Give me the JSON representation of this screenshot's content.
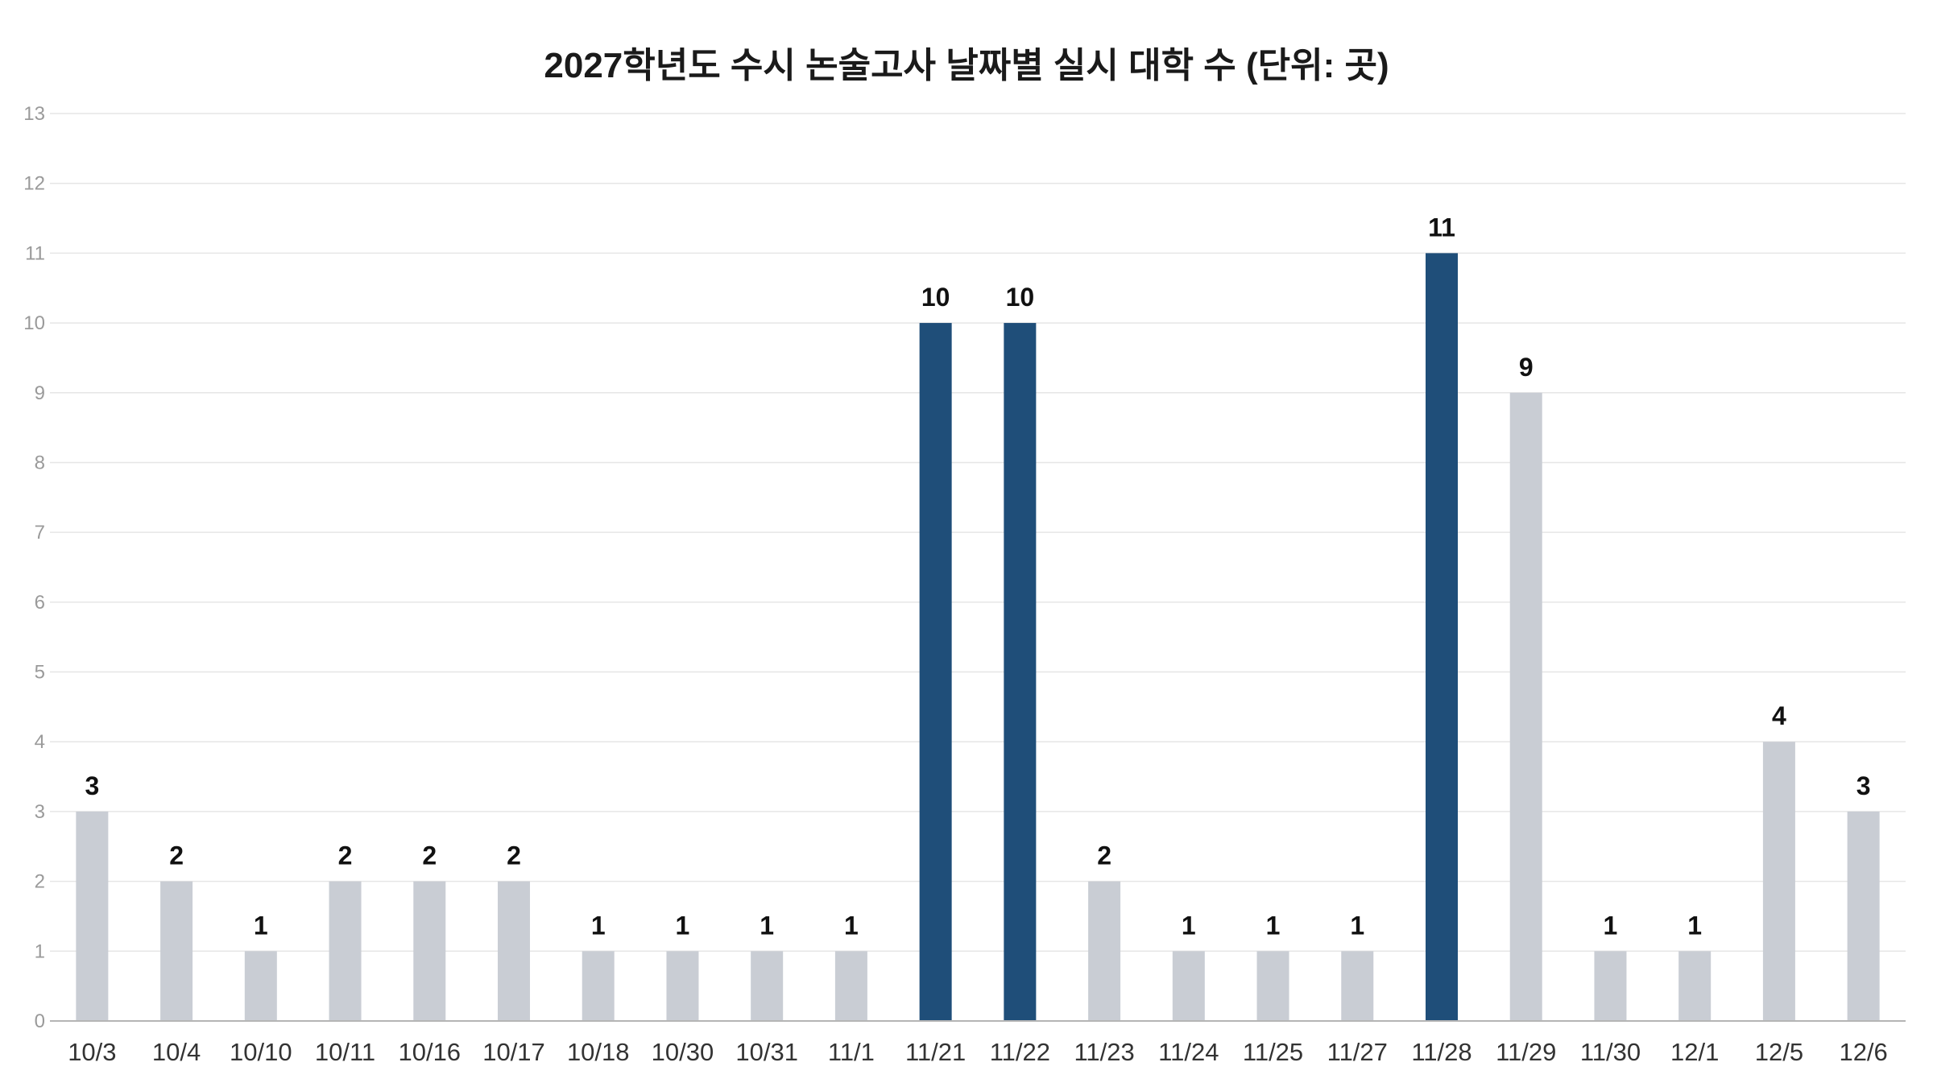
{
  "chart_data": {
    "type": "bar",
    "title": "2027학년도 수시 논술고사 날짜별 실시 대학 수 (단위: 곳)",
    "xlabel": "",
    "ylabel": "",
    "categories": [
      "10/3",
      "10/4",
      "10/10",
      "10/11",
      "10/16",
      "10/17",
      "10/18",
      "10/30",
      "10/31",
      "11/1",
      "11/21",
      "11/22",
      "11/23",
      "11/24",
      "11/25",
      "11/27",
      "11/28",
      "11/29",
      "11/30",
      "12/1",
      "12/5",
      "12/6"
    ],
    "values": [
      3,
      2,
      1,
      2,
      2,
      2,
      1,
      1,
      1,
      1,
      10,
      10,
      2,
      1,
      1,
      1,
      11,
      9,
      1,
      1,
      4,
      3
    ],
    "highlighted": [
      false,
      false,
      false,
      false,
      false,
      false,
      false,
      false,
      false,
      false,
      true,
      true,
      false,
      false,
      false,
      false,
      true,
      false,
      false,
      false,
      false,
      false
    ],
    "ylim": [
      0,
      13
    ],
    "yticks": [
      0,
      1,
      2,
      3,
      4,
      5,
      6,
      7,
      8,
      9,
      10,
      11,
      12,
      13
    ],
    "grid": true,
    "legend": "none",
    "colors": {
      "default_bar": "#c9cdd4",
      "highlight_bar": "#1f4e79"
    }
  }
}
